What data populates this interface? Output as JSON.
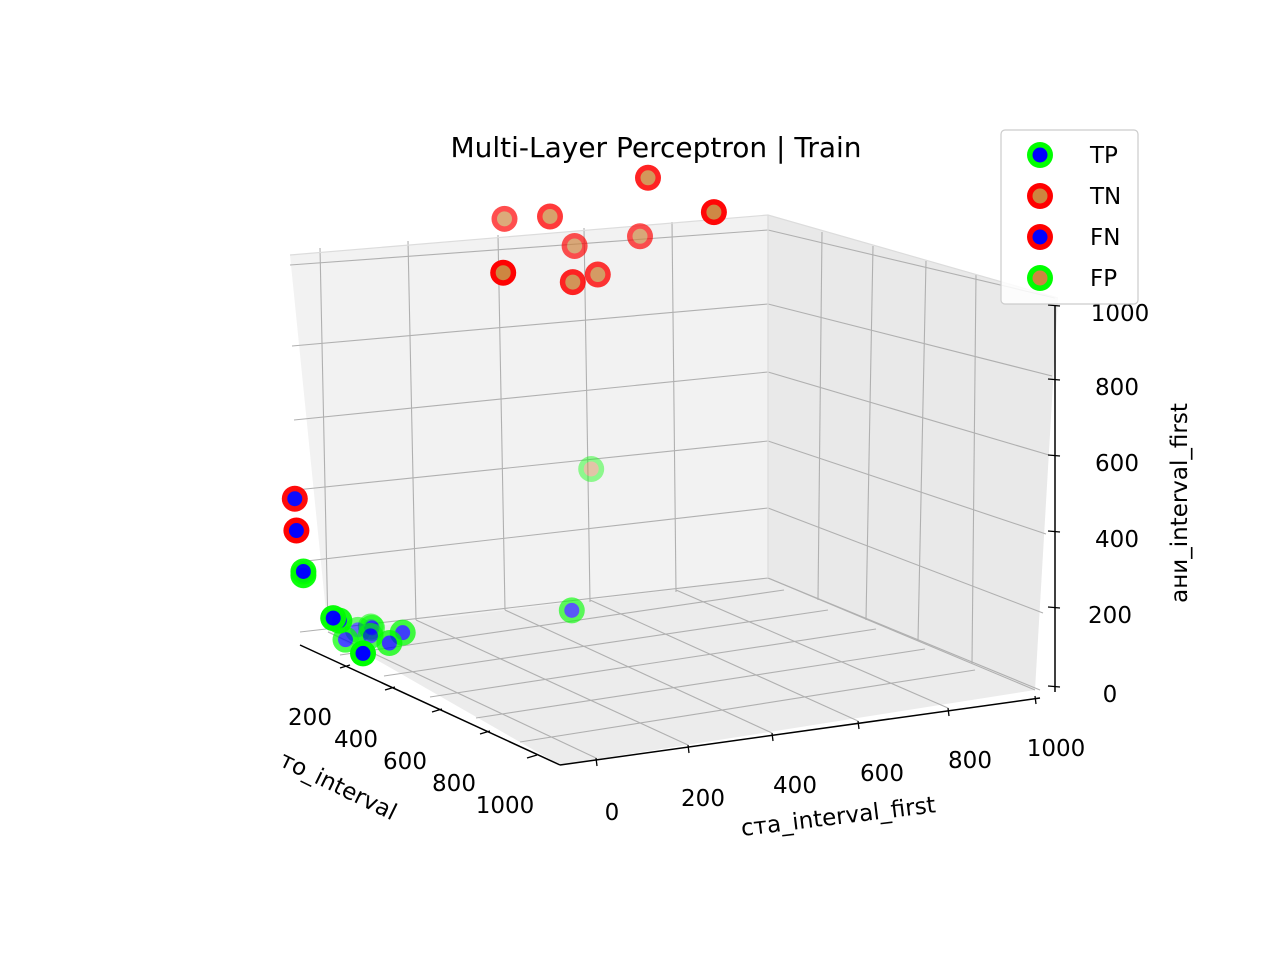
{
  "chart_data": {
    "type": "scatter3d",
    "title": "Multi-Layer Perceptron | Train",
    "xlabel": "то_interval",
    "ylabel": "ста_interval_first",
    "zlabel": "ани_interval_first",
    "x_ticks": [
      "200",
      "400",
      "600",
      "800",
      "1000"
    ],
    "y_ticks": [
      "0",
      "200",
      "400",
      "600",
      "800",
      "1000"
    ],
    "z_ticks": [
      "0",
      "200",
      "400",
      "600",
      "800",
      "1000"
    ],
    "grid": true,
    "legend_position": "top-right",
    "legend": [
      {
        "label": "TP",
        "edge": "#00ff00",
        "face": "#0000ff"
      },
      {
        "label": "TN",
        "edge": "#ff0000",
        "face": "#cd853f"
      },
      {
        "label": "FN",
        "edge": "#ff0000",
        "face": "#0000ff"
      },
      {
        "label": "FP",
        "edge": "#00ff00",
        "face": "#cd853f"
      }
    ],
    "series": [
      {
        "name": "TP",
        "edge": "#00ff00",
        "face": "#0000ff",
        "points": [
          [
            140,
            80,
            40
          ],
          [
            420,
            160,
            20
          ],
          [
            440,
            190,
            40
          ],
          [
            540,
            130,
            30
          ],
          [
            460,
            70,
            40
          ],
          [
            620,
            110,
            40
          ],
          [
            650,
            140,
            40
          ],
          [
            620,
            140,
            40
          ],
          [
            560,
            560,
            20
          ],
          [
            260,
            40,
            120
          ],
          [
            180,
            20,
            140
          ],
          [
            220,
            -40,
            260
          ],
          [
            220,
            -40,
            270
          ]
        ]
      },
      {
        "name": "TN",
        "edge": "#ff0000",
        "face": "#cd853f",
        "points": [
          [
            160,
            380,
            1000
          ],
          [
            500,
            700,
            1000
          ],
          [
            490,
            560,
            1000
          ],
          [
            380,
            600,
            930
          ],
          [
            300,
            540,
            930
          ],
          [
            180,
            830,
            1080
          ],
          [
            480,
            410,
            1100
          ],
          [
            400,
            500,
            1100
          ],
          [
            300,
            700,
            1180
          ]
        ]
      },
      {
        "name": "FN",
        "edge": "#ff0000",
        "face": "#0000ff",
        "points": [
          [
            200,
            -60,
            470
          ],
          [
            160,
            -60,
            390
          ]
        ]
      },
      {
        "name": "FP",
        "edge": "#00ff00",
        "face": "#cd853f",
        "points": [
          [
            780,
            620,
            360
          ]
        ]
      }
    ]
  }
}
